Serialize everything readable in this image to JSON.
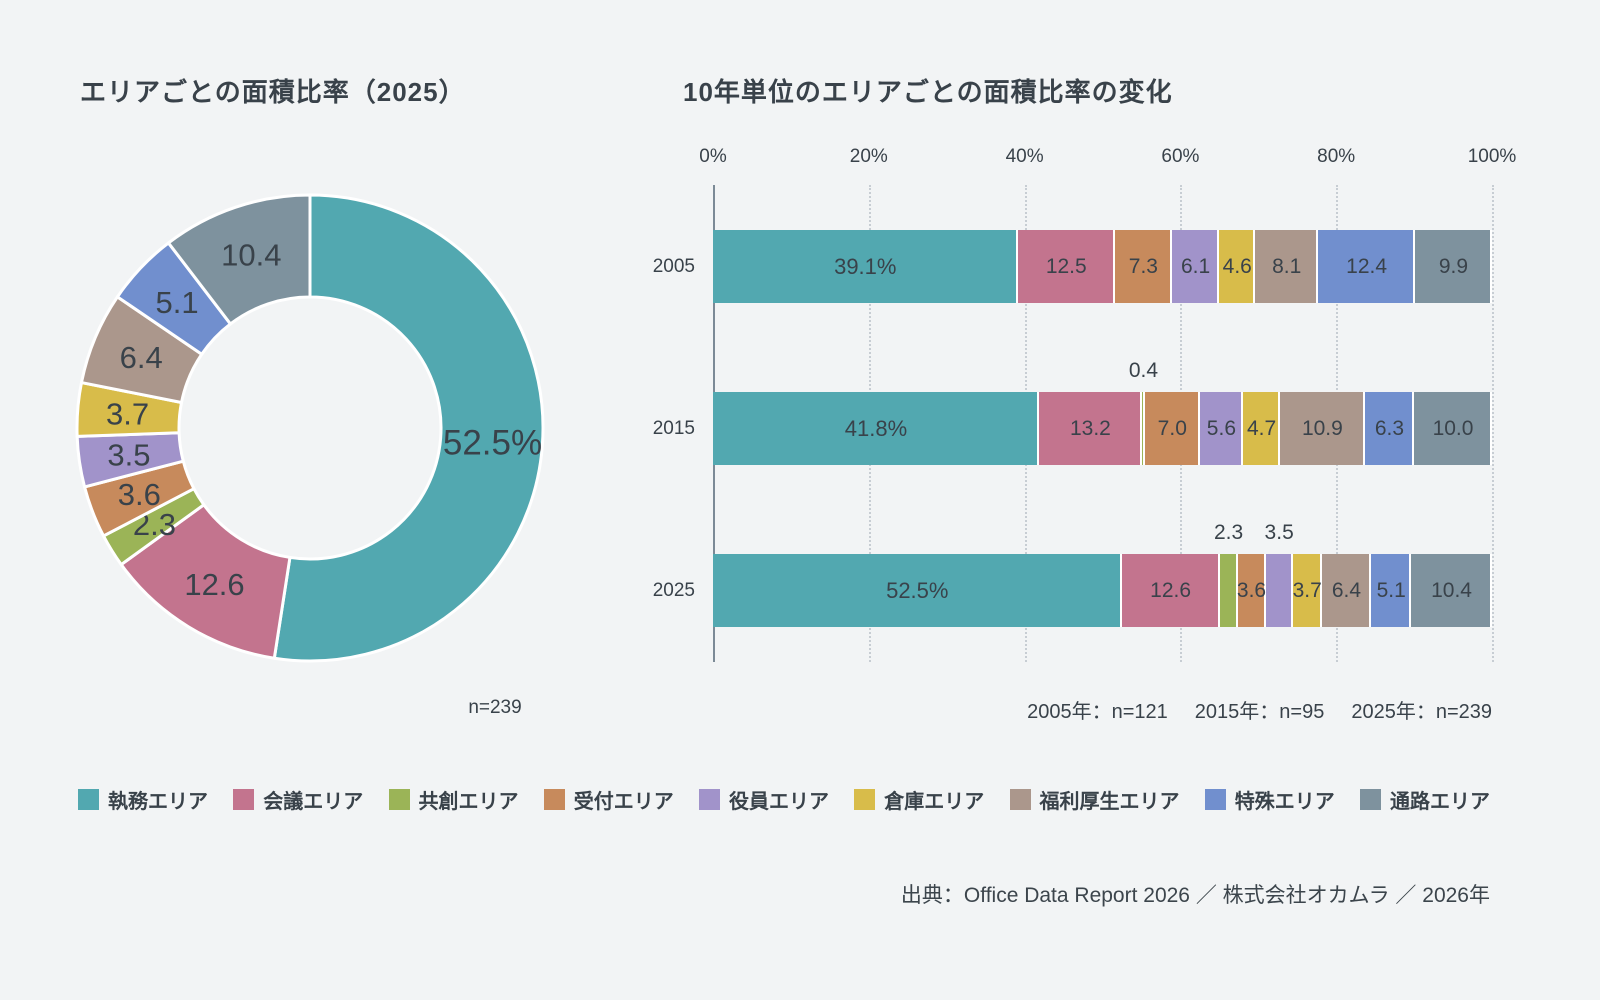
{
  "page": {
    "background_color": "#F2F4F5",
    "text_color": "#39424A"
  },
  "palette": [
    "#52A8B0",
    "#C3748E",
    "#9BB457",
    "#C78A5C",
    "#A193CA",
    "#D8BC4A",
    "#AB978C",
    "#718FCE",
    "#7E929E"
  ],
  "donut_panel": {
    "title": "エリアごとの面積比率（2025）",
    "n_label": "n=239"
  },
  "bar_panel": {
    "title": "10年単位のエリアごとの面積比率の変化",
    "footnotes": [
      "2005年：n=121",
      "2015年：n=95",
      "2025年：n=239"
    ]
  },
  "legend": {
    "items": [
      "執務エリア",
      "会議エリア",
      "共創エリア",
      "受付エリア",
      "役員エリア",
      "倉庫エリア",
      "福利厚生エリア",
      "特殊エリア",
      "通路エリア"
    ]
  },
  "source": "出典：Office Data Report 2026 ／ 株式会社オカムラ ／ 2026年",
  "chart_data": [
    {
      "type": "pie",
      "subtype": "donut",
      "title": "エリアごとの面積比率（2025）",
      "categories": [
        "執務エリア",
        "会議エリア",
        "共創エリア",
        "受付エリア",
        "役員エリア",
        "倉庫エリア",
        "福利厚生エリア",
        "特殊エリア",
        "通路エリア"
      ],
      "values": [
        52.5,
        12.6,
        2.3,
        3.6,
        3.5,
        3.7,
        6.4,
        5.1,
        10.4
      ],
      "labels": [
        "52.5%",
        "12.6",
        "2.3",
        "3.6",
        "3.5",
        "3.7",
        "6.4",
        "5.1",
        "10.4"
      ],
      "sample_size": "n=239",
      "start_angle_deg": 0,
      "direction": "clockwise",
      "legend_position": "bottom"
    },
    {
      "type": "bar",
      "subtype": "horizontal-stacked",
      "title": "10年単位のエリアごとの面積比率の変化",
      "categories": [
        "執務エリア",
        "会議エリア",
        "共創エリア",
        "受付エリア",
        "役員エリア",
        "倉庫エリア",
        "福利厚生エリア",
        "特殊エリア",
        "通路エリア"
      ],
      "x_ticks": [
        "0%",
        "20%",
        "40%",
        "60%",
        "80%",
        "100%"
      ],
      "xlim": [
        0,
        100
      ],
      "grid": "dotted-vertical",
      "rows": [
        {
          "label": "2005",
          "values": [
            39.1,
            12.5,
            0,
            7.3,
            6.1,
            4.6,
            8.1,
            12.4,
            9.9
          ],
          "labels": [
            "39.1%",
            "12.5",
            "",
            "7.3",
            "6.1",
            "4.6",
            "8.1",
            "12.4",
            "9.9"
          ],
          "labels_above_indices": [],
          "n": "n=121"
        },
        {
          "label": "2015",
          "values": [
            41.8,
            13.2,
            0.4,
            7.0,
            5.6,
            4.7,
            10.9,
            6.3,
            10.0
          ],
          "labels": [
            "41.8%",
            "13.2",
            "0.4",
            "7.0",
            "5.6",
            "4.7",
            "10.9",
            "6.3",
            "10.0"
          ],
          "labels_above_indices": [
            2
          ],
          "n": "n=95"
        },
        {
          "label": "2025",
          "values": [
            52.5,
            12.6,
            2.3,
            3.6,
            3.5,
            3.7,
            6.4,
            5.1,
            10.4
          ],
          "labels": [
            "52.5%",
            "12.6",
            "2.3",
            "3.6",
            "3.5",
            "3.7",
            "6.4",
            "5.1",
            "10.4"
          ],
          "labels_above_indices": [
            2,
            4
          ],
          "n": "n=239"
        }
      ],
      "footnote": "2005年：n=121　2015年：n=95　2025年：n=239",
      "legend_position": "bottom"
    }
  ]
}
